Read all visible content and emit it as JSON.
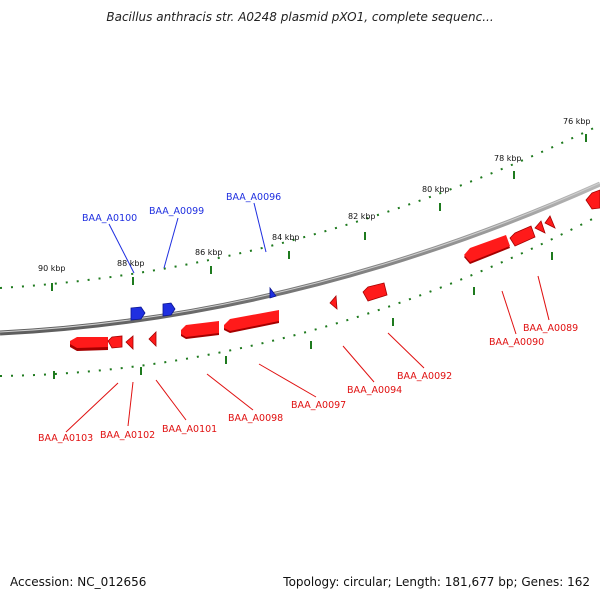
{
  "title": "Bacillus anthracis str. A0248 plasmid pXO1, complete sequenc...",
  "footer": {
    "accession": "Accession: NC_012656",
    "stats": "Topology: circular; Length: 181,677 bp; Genes: 162"
  },
  "colors": {
    "background": "#ffffff",
    "backbone": "#8a8a8a",
    "tick": "#1e7a1e",
    "forward_gene": "#1f2fe0",
    "reverse_gene": "#ff1a1a",
    "reverse_gene_shadow": "#a50000"
  },
  "scale_labels": [
    "90 kbp",
    "88 kbp",
    "86 kbp",
    "84 kbp",
    "82 kbp",
    "80 kbp",
    "78 kbp",
    "76 kbp"
  ],
  "forward_genes": [
    {
      "label": "BAA_A0100"
    },
    {
      "label": "BAA_A0099"
    },
    {
      "label": "BAA_A0096"
    }
  ],
  "reverse_genes": [
    {
      "label": "BAA_A0103"
    },
    {
      "label": "BAA_A0102"
    },
    {
      "label": "BAA_A0101"
    },
    {
      "label": "BAA_A0098"
    },
    {
      "label": "BAA_A0097"
    },
    {
      "label": "BAA_A0094"
    },
    {
      "label": "BAA_A0092"
    },
    {
      "label": "BAA_A0090"
    },
    {
      "label": "BAA_A0089"
    }
  ]
}
